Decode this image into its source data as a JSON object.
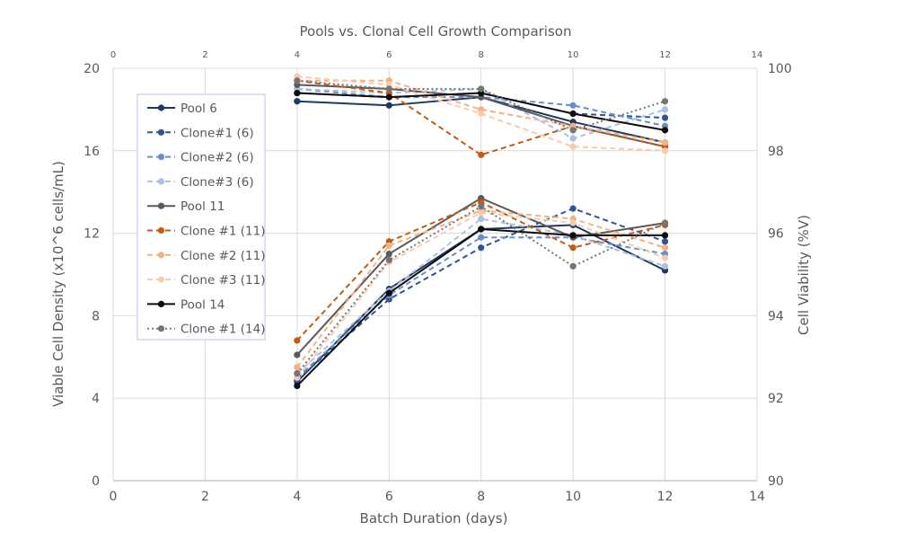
{
  "chart_data": {
    "type": "line",
    "title": "Pools vs. Clonal Cell Growth Comparison",
    "xlabel": "Batch Duration (days)",
    "ylabel": "Viable Cell Density (x10^6 cells/mL)",
    "y2label": "Cell Viability (%V)",
    "xlim": [
      0,
      14
    ],
    "ylim": [
      0,
      20
    ],
    "y2lim": [
      90,
      100
    ],
    "x_ticks": [
      "0",
      "2",
      "4",
      "6",
      "8",
      "10",
      "12",
      "14"
    ],
    "y_ticks": [
      "0",
      "4",
      "8",
      "12",
      "16",
      "20"
    ],
    "y2_ticks": [
      "90",
      "92",
      "94",
      "96",
      "98",
      "100"
    ],
    "grid": true,
    "legend_position": "top-left inside plot",
    "series": [
      {
        "name": "Pool 6",
        "color": "#1f3864",
        "dash": "solid",
        "x": [
          4,
          6,
          8,
          10,
          12
        ],
        "vcd": [
          4.8,
          9.3,
          12.2,
          12.4,
          10.2
        ],
        "viability": [
          99.2,
          99.1,
          99.3,
          98.7,
          98.2
        ]
      },
      {
        "name": "Clone#1 (6)",
        "color": "#2f5597",
        "dash": "dashed",
        "x": [
          4,
          6,
          8,
          10,
          12
        ],
        "vcd": [
          4.9,
          8.8,
          11.3,
          13.2,
          11.6
        ],
        "viability": [
          99.4,
          99.3,
          99.4,
          98.9,
          98.8
        ]
      },
      {
        "name": "Clone#2 (6)",
        "color": "#6a8fc8",
        "dash": "dashed",
        "x": [
          4,
          6,
          8,
          10,
          12
        ],
        "vcd": [
          5.0,
          9.0,
          11.8,
          11.8,
          11.0
        ],
        "viability": [
          99.5,
          99.3,
          99.3,
          99.1,
          98.6
        ]
      },
      {
        "name": "Clone#3 (6)",
        "color": "#a9c1e3",
        "dash": "dashed",
        "x": [
          4,
          6,
          8,
          10,
          12
        ],
        "vcd": [
          5.2,
          9.2,
          12.7,
          11.9,
          10.4
        ],
        "viability": [
          99.5,
          99.4,
          99.5,
          98.3,
          99.0
        ]
      },
      {
        "name": "Pool 11",
        "color": "#595959",
        "dash": "solid",
        "x": [
          4,
          6,
          8,
          10,
          12
        ],
        "vcd": [
          6.1,
          11.0,
          13.7,
          11.8,
          12.5
        ],
        "viability": [
          99.6,
          99.5,
          99.3,
          98.6,
          98.1
        ]
      },
      {
        "name": "Clone #1 (11)",
        "color": "#c55a11",
        "dash": "dashed",
        "x": [
          4,
          6,
          8,
          10,
          12
        ],
        "vcd": [
          6.8,
          11.6,
          13.5,
          11.3,
          12.4
        ],
        "viability": [
          99.7,
          99.4,
          97.9,
          98.6,
          98.1
        ]
      },
      {
        "name": "Clone #2 (11)",
        "color": "#f4b183",
        "dash": "dashed",
        "x": [
          4,
          6,
          8,
          10,
          12
        ],
        "vcd": [
          5.5,
          11.4,
          13.1,
          12.7,
          11.3
        ],
        "viability": [
          99.7,
          99.7,
          99.0,
          98.6,
          98.2
        ]
      },
      {
        "name": "Clone #3 (11)",
        "color": "#f8cbad",
        "dash": "dashed",
        "x": [
          4,
          6,
          8,
          10,
          12
        ],
        "vcd": [
          5.0,
          10.6,
          13.0,
          12.5,
          10.8
        ],
        "viability": [
          99.8,
          99.6,
          98.9,
          98.1,
          98.0
        ]
      },
      {
        "name": "Pool 14",
        "color": "#0d0d0d",
        "dash": "solid",
        "x": [
          4,
          6,
          8,
          10,
          12
        ],
        "vcd": [
          4.6,
          9.1,
          12.2,
          11.9,
          11.9
        ],
        "viability": [
          99.4,
          99.3,
          99.4,
          98.9,
          98.5
        ]
      },
      {
        "name": "Clone #1 (14)",
        "color": "#757575",
        "dash": "dotted",
        "x": [
          4,
          6,
          8,
          10,
          12
        ],
        "vcd": [
          5.2,
          10.7,
          13.3,
          10.4,
          12.5
        ],
        "viability": [
          99.7,
          99.5,
          99.5,
          98.5,
          99.2
        ]
      }
    ]
  }
}
